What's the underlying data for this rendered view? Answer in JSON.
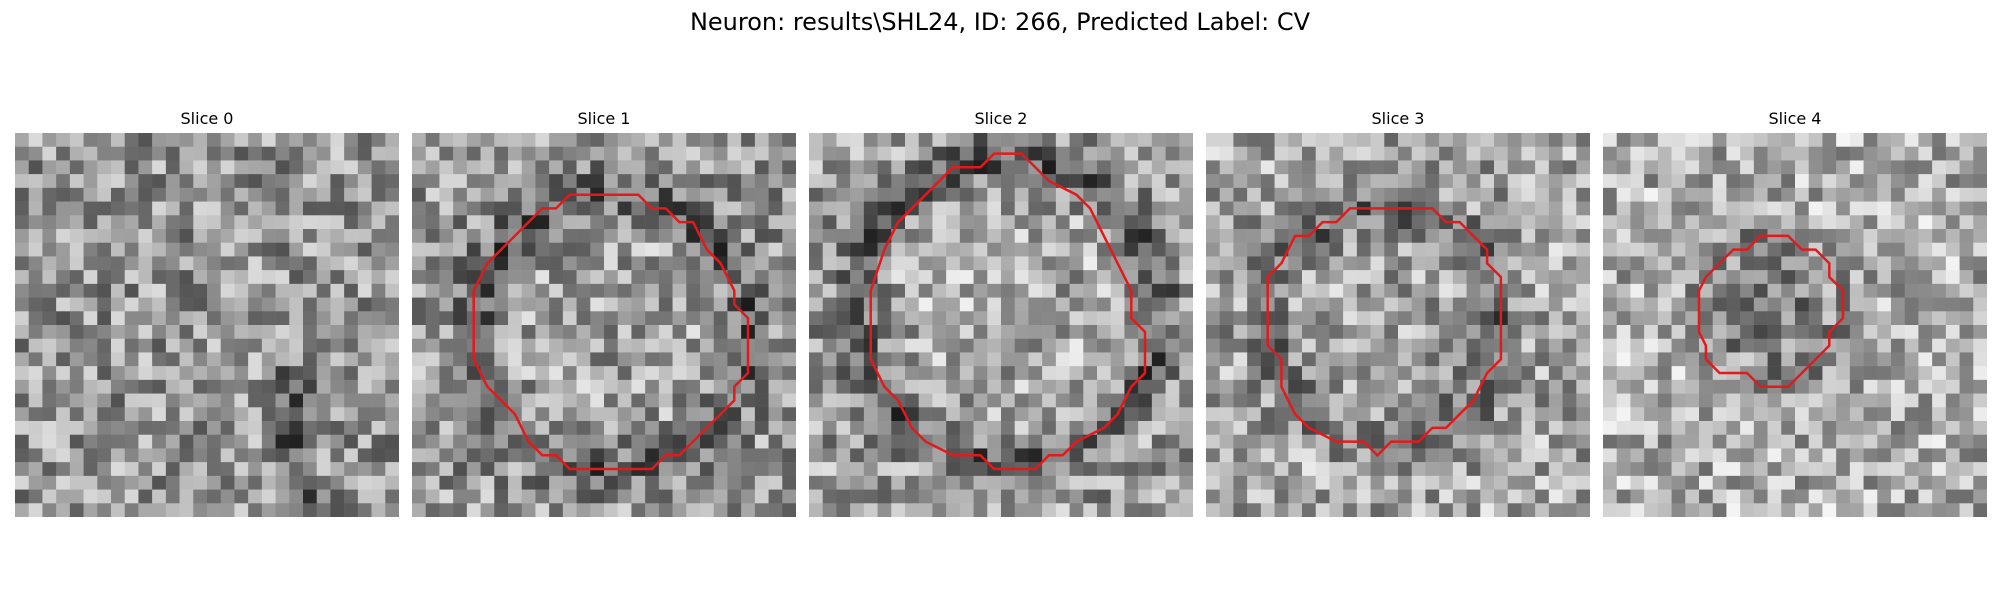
{
  "title": "Neuron: results\\SHL24, ID: 266, Predicted Label: CV",
  "colors": {
    "contour": "#e31a1c"
  },
  "panels": [
    {
      "title": "Slice 0",
      "contour": []
    },
    {
      "title": "Slice 1",
      "contour": [
        [
          11.5,
          4.5
        ],
        [
          16.5,
          4.5
        ],
        [
          17.5,
          5.5
        ],
        [
          18.5,
          5.5
        ],
        [
          19.5,
          6.5
        ],
        [
          20.5,
          6.5
        ],
        [
          21.5,
          8.5
        ],
        [
          22.5,
          9.5
        ],
        [
          23.5,
          11.5
        ],
        [
          23.5,
          12.5
        ],
        [
          24.5,
          13.5
        ],
        [
          24.5,
          17.5
        ],
        [
          23.5,
          18.5
        ],
        [
          23.5,
          19.5
        ],
        [
          22.5,
          20.5
        ],
        [
          19.5,
          23.5
        ],
        [
          18.5,
          23.5
        ],
        [
          17.5,
          24.5
        ],
        [
          11.5,
          24.5
        ],
        [
          10.5,
          23.5
        ],
        [
          9.5,
          23.5
        ],
        [
          8.5,
          22.5
        ],
        [
          7.5,
          20.5
        ],
        [
          6.5,
          19.5
        ],
        [
          5.5,
          18.5
        ],
        [
          4.5,
          16.5
        ],
        [
          4.5,
          11.5
        ],
        [
          5.5,
          9.5
        ],
        [
          6.5,
          8.5
        ],
        [
          7.5,
          7.5
        ],
        [
          9.5,
          5.5
        ],
        [
          10.5,
          5.5
        ]
      ]
    },
    {
      "title": "Slice 2",
      "contour": [
        [
          10.5,
          2.5
        ],
        [
          12.5,
          2.5
        ],
        [
          13.5,
          1.5
        ],
        [
          15.5,
          1.5
        ],
        [
          16.5,
          2.5
        ],
        [
          17.5,
          3.5
        ],
        [
          19.5,
          4.5
        ],
        [
          20.5,
          5.5
        ],
        [
          21.5,
          7.5
        ],
        [
          22.5,
          9.5
        ],
        [
          23.5,
          11.5
        ],
        [
          23.5,
          13.5
        ],
        [
          24.5,
          14.5
        ],
        [
          24.5,
          17.5
        ],
        [
          23.5,
          18.5
        ],
        [
          22.5,
          20.5
        ],
        [
          21.5,
          21.5
        ],
        [
          19.5,
          22.5
        ],
        [
          18.5,
          23.5
        ],
        [
          17.5,
          23.5
        ],
        [
          16.5,
          24.5
        ],
        [
          13.5,
          24.5
        ],
        [
          12.5,
          23.5
        ],
        [
          10.5,
          23.5
        ],
        [
          8.5,
          22.5
        ],
        [
          7.5,
          21.5
        ],
        [
          6.5,
          19.5
        ],
        [
          5.5,
          18.5
        ],
        [
          4.5,
          16.5
        ],
        [
          4.5,
          11.5
        ],
        [
          5.5,
          8.5
        ],
        [
          6.5,
          6.5
        ],
        [
          7.5,
          5.5
        ],
        [
          8.5,
          4.5
        ],
        [
          9.5,
          3.5
        ]
      ]
    },
    {
      "title": "Slice 3",
      "contour": [
        [
          10.5,
          5.5
        ],
        [
          16.5,
          5.5
        ],
        [
          17.5,
          6.5
        ],
        [
          18.5,
          6.5
        ],
        [
          19.5,
          7.5
        ],
        [
          20.5,
          8.5
        ],
        [
          20.5,
          9.5
        ],
        [
          21.5,
          10.5
        ],
        [
          21.5,
          16.5
        ],
        [
          20.5,
          17.5
        ],
        [
          19.5,
          19.5
        ],
        [
          18.5,
          20.5
        ],
        [
          17.5,
          21.5
        ],
        [
          16.5,
          21.5
        ],
        [
          15.5,
          22.5
        ],
        [
          13.5,
          22.5
        ],
        [
          12.5,
          23.5
        ],
        [
          11.5,
          22.5
        ],
        [
          9.5,
          22.5
        ],
        [
          7.5,
          21.5
        ],
        [
          6.5,
          20.5
        ],
        [
          5.5,
          18.5
        ],
        [
          5.5,
          16.5
        ],
        [
          4.5,
          15.5
        ],
        [
          4.5,
          10.5
        ],
        [
          5.5,
          9.5
        ],
        [
          6.5,
          7.5
        ],
        [
          7.5,
          7.5
        ],
        [
          8.5,
          6.5
        ],
        [
          9.5,
          6.5
        ]
      ]
    },
    {
      "title": "Slice 4",
      "contour": [
        [
          11.5,
          7.5
        ],
        [
          13.5,
          7.5
        ],
        [
          14.5,
          8.5
        ],
        [
          15.5,
          8.5
        ],
        [
          16.5,
          9.5
        ],
        [
          16.5,
          10.5
        ],
        [
          17.5,
          11.5
        ],
        [
          17.5,
          13.5
        ],
        [
          16.5,
          14.5
        ],
        [
          16.5,
          15.5
        ],
        [
          15.5,
          16.5
        ],
        [
          14.5,
          17.5
        ],
        [
          13.5,
          18.5
        ],
        [
          11.5,
          18.5
        ],
        [
          10.5,
          17.5
        ],
        [
          8.5,
          17.5
        ],
        [
          7.5,
          16.5
        ],
        [
          7.5,
          15.5
        ],
        [
          7.0,
          14.5
        ],
        [
          7.0,
          11.5
        ],
        [
          7.5,
          10.5
        ],
        [
          8.5,
          9.5
        ],
        [
          9.5,
          8.5
        ],
        [
          10.5,
          8.5
        ]
      ]
    }
  ]
}
